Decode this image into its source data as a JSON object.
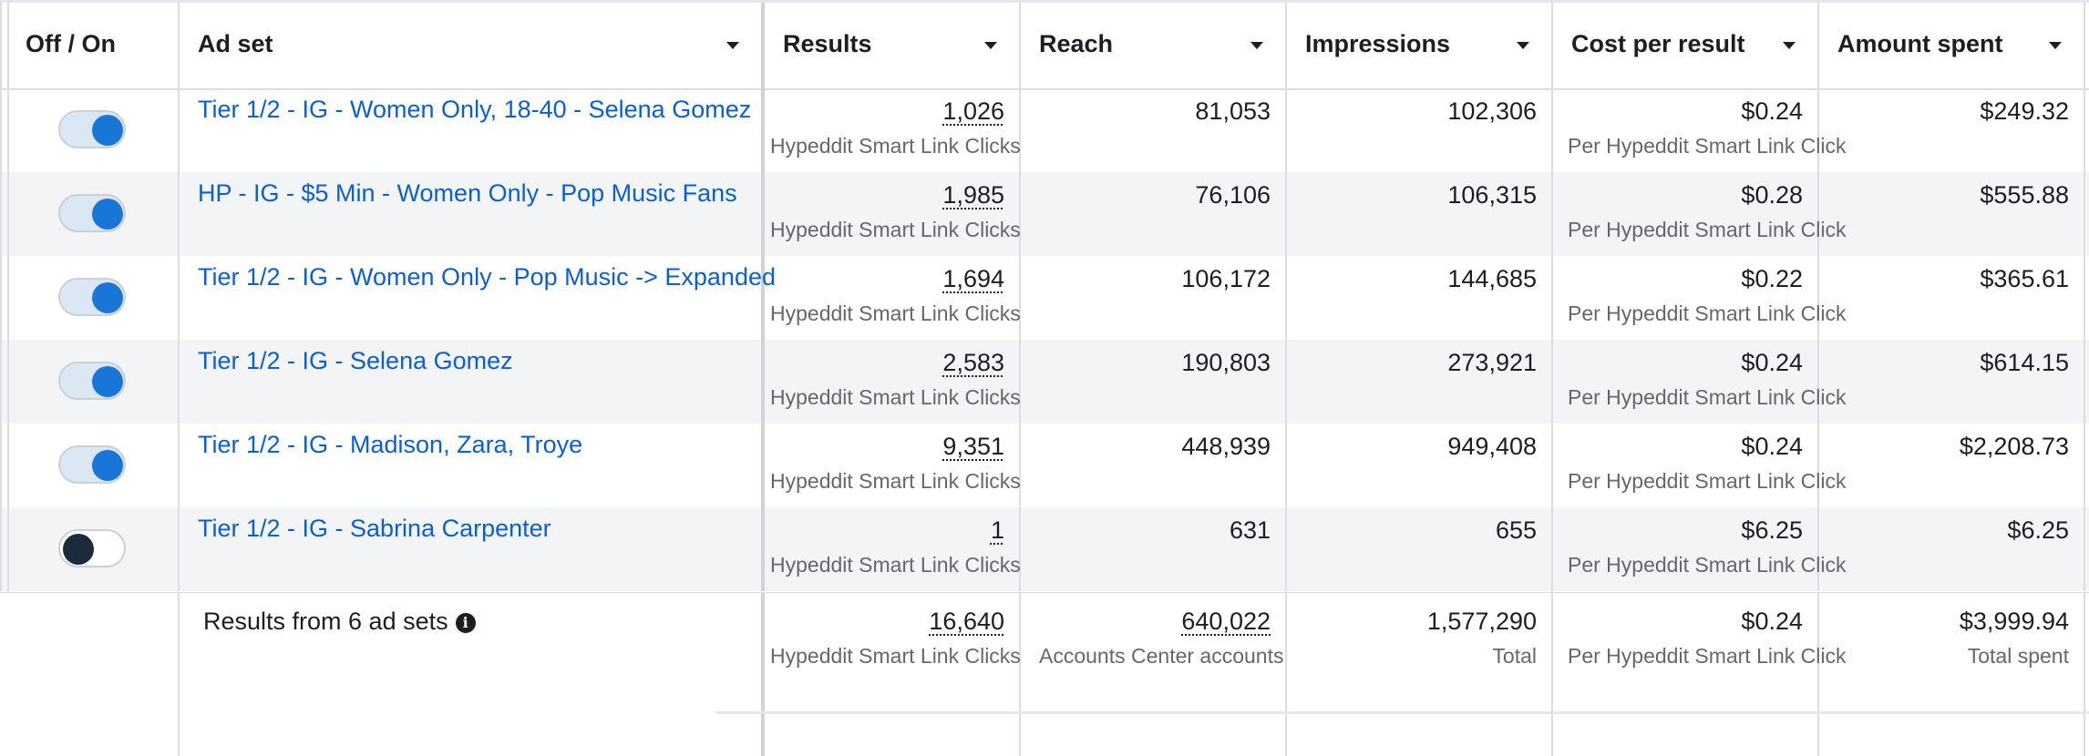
{
  "columns": {
    "toggle": "Off / On",
    "adset": "Ad set",
    "results": "Results",
    "reach": "Reach",
    "impressions": "Impressions",
    "cost_per_result": "Cost per result",
    "amount_spent": "Amount spent"
  },
  "rows": [
    {
      "on": true,
      "name": "Tier 1/2 - IG - Women Only, 18-40 - Selena Gomez",
      "results": "1,026",
      "results_sub": "Hypeddit Smart Link Clicks",
      "reach": "81,053",
      "impressions": "102,306",
      "cpr": "$0.24",
      "cpr_sub": "Per Hypeddit Smart Link Click",
      "spent": "$249.32"
    },
    {
      "on": true,
      "name": "HP - IG - $5 Min - Women Only - Pop Music Fans",
      "results": "1,985",
      "results_sub": "Hypeddit Smart Link Clicks",
      "reach": "76,106",
      "impressions": "106,315",
      "cpr": "$0.28",
      "cpr_sub": "Per Hypeddit Smart Link Click",
      "spent": "$555.88"
    },
    {
      "on": true,
      "name": "Tier 1/2 - IG - Women Only - Pop Music -> Expanded",
      "results": "1,694",
      "results_sub": "Hypeddit Smart Link Clicks",
      "reach": "106,172",
      "impressions": "144,685",
      "cpr": "$0.22",
      "cpr_sub": "Per Hypeddit Smart Link Click",
      "spent": "$365.61"
    },
    {
      "on": true,
      "name": "Tier 1/2 - IG - Selena Gomez",
      "results": "2,583",
      "results_sub": "Hypeddit Smart Link Clicks",
      "reach": "190,803",
      "impressions": "273,921",
      "cpr": "$0.24",
      "cpr_sub": "Per Hypeddit Smart Link Click",
      "spent": "$614.15"
    },
    {
      "on": true,
      "name": "Tier 1/2 - IG - Madison, Zara, Troye",
      "results": "9,351",
      "results_sub": "Hypeddit Smart Link Clicks",
      "reach": "448,939",
      "impressions": "949,408",
      "cpr": "$0.24",
      "cpr_sub": "Per Hypeddit Smart Link Click",
      "spent": "$2,208.73"
    },
    {
      "on": false,
      "name": "Tier 1/2 - IG - Sabrina Carpenter",
      "results": "1",
      "results_sub": "Hypeddit Smart Link Clicks",
      "reach": "631",
      "impressions": "655",
      "cpr": "$6.25",
      "cpr_sub": "Per Hypeddit Smart Link Click",
      "spent": "$6.25"
    }
  ],
  "total": {
    "label": "Results from 6 ad sets",
    "info_icon": "i",
    "results": "16,640",
    "results_sub": "Hypeddit Smart Link Clicks",
    "reach": "640,022",
    "reach_sub": "Accounts Center accounts",
    "impressions": "1,577,290",
    "impressions_sub": "Total",
    "cpr": "$0.24",
    "cpr_sub": "Per Hypeddit Smart Link Click",
    "spent": "$3,999.94",
    "spent_sub": "Total spent"
  },
  "colors": {
    "link": "#0a5ed7",
    "toggle_on": "#1877d6",
    "alt_row": "#f3f4f6"
  }
}
